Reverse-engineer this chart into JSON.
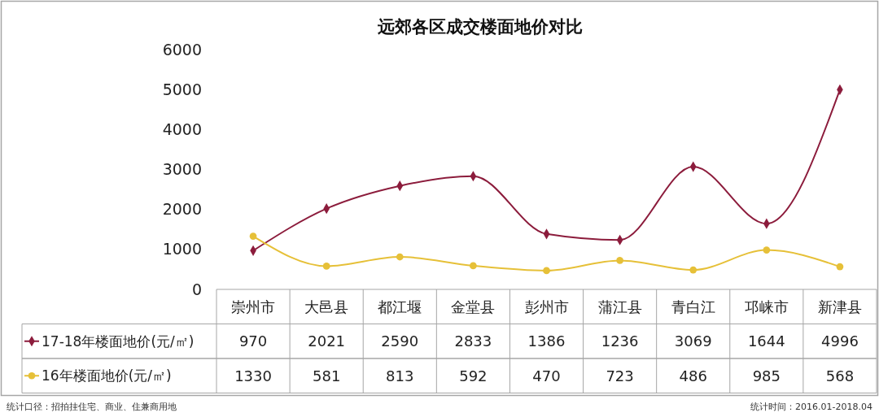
{
  "chart_data": {
    "type": "line",
    "title": "远郊各区成交楼面地价对比",
    "categories": [
      "崇州市",
      "大邑县",
      "都江堰",
      "金堂县",
      "彭州市",
      "蒲江县",
      "青白江",
      "邛崃市",
      "新津县"
    ],
    "series": [
      {
        "name": "17-18年楼面地价(元/㎡)",
        "color": "#8c1c3c",
        "marker": "diamond",
        "values": [
          970,
          2021,
          2590,
          2833,
          1386,
          1236,
          3069,
          1644,
          4996
        ]
      },
      {
        "name": "16年楼面地价(元/㎡)",
        "color": "#e6c038",
        "marker": "circle",
        "values": [
          1330,
          581,
          813,
          592,
          470,
          723,
          486,
          985,
          568
        ]
      }
    ],
    "ylim": [
      0,
      6000
    ],
    "yticks": [
      0,
      1000,
      2000,
      3000,
      4000,
      5000,
      6000
    ],
    "data_labels": true,
    "legend": "bottom left",
    "annotations": [
      "统计口径：招拍挂住宅、商业、住兼商用地",
      "统计时间：2016.01-2018.04"
    ]
  }
}
